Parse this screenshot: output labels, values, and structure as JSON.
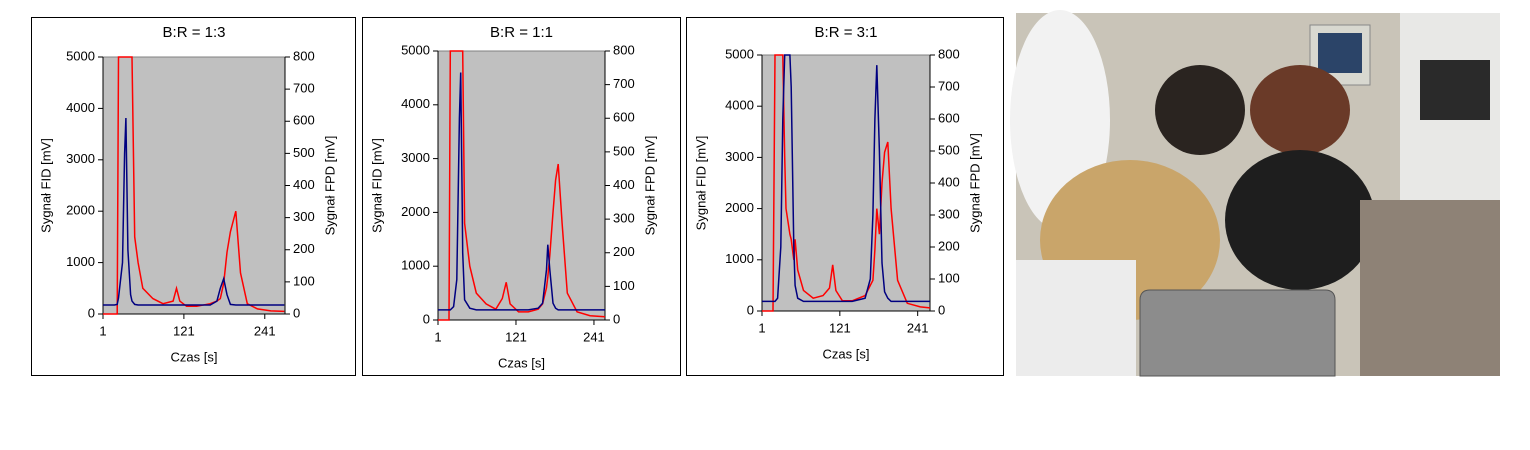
{
  "chart_data": [
    {
      "type": "line",
      "title": "B:R =  1:3",
      "xlabel": "Czas  [s]",
      "ylabel": "Sygnał FID  [mV]",
      "y2label": "Sygnał FPD  [mV]",
      "xlim": [
        1,
        271
      ],
      "xticks": [
        1,
        121,
        241
      ],
      "ylim": [
        0,
        5000
      ],
      "yticks": [
        0,
        1000,
        2000,
        3000,
        4000,
        5000
      ],
      "y2lim": [
        0,
        800
      ],
      "y2ticks": [
        0,
        100,
        200,
        300,
        400,
        500,
        600,
        700,
        800
      ],
      "background": "#c0c0c0",
      "x": [
        1,
        10,
        18,
        22,
        24,
        30,
        33,
        35,
        38,
        42,
        44,
        48,
        53,
        60,
        75,
        90,
        105,
        110,
        115,
        125,
        140,
        160,
        170,
        175,
        180,
        185,
        190,
        198,
        205,
        215,
        230,
        250,
        270
      ],
      "series": [
        {
          "color": "#ff0000",
          "values": [
            0,
            0,
            0,
            0,
            5000,
            5000,
            5000,
            5000,
            5000,
            5000,
            5000,
            1500,
            1000,
            500,
            300,
            200,
            250,
            500,
            250,
            150,
            150,
            200,
            250,
            300,
            600,
            1200,
            1600,
            2000,
            800,
            200,
            100,
            60,
            50
          ]
        },
        {
          "color": "#000080",
          "axis": "y2",
          "values": [
            28,
            28,
            28,
            30,
            50,
            160,
            500,
            610,
            200,
            60,
            40,
            30,
            28,
            28,
            28,
            28,
            28,
            28,
            28,
            28,
            28,
            28,
            40,
            80,
            110,
            60,
            30,
            28,
            28,
            28,
            28,
            28,
            28
          ]
        }
      ]
    },
    {
      "type": "line",
      "title": "B:R = 1:1",
      "xlabel": "Czas  [s]",
      "ylabel": "Sygnał FID  [mV]",
      "y2label": "Sygnał FPD  [mV]",
      "xlim": [
        1,
        258
      ],
      "xticks": [
        1,
        121,
        241
      ],
      "ylim": [
        0,
        5000
      ],
      "yticks": [
        0,
        1000,
        2000,
        3000,
        4000,
        5000
      ],
      "y2lim": [
        0,
        800
      ],
      "y2ticks": [
        0,
        100,
        200,
        300,
        400,
        500,
        600,
        700,
        800
      ],
      "background": "#c0c0c0",
      "x": [
        1,
        10,
        18,
        20,
        25,
        30,
        34,
        36,
        38,
        39,
        42,
        50,
        60,
        75,
        90,
        100,
        106,
        112,
        125,
        140,
        155,
        162,
        168,
        170,
        173,
        178,
        182,
        186,
        192,
        200,
        215,
        235,
        258
      ],
      "series": [
        {
          "color": "#ff0000",
          "values": [
            0,
            0,
            0,
            5000,
            5000,
            5000,
            5000,
            5000,
            5000,
            5000,
            1800,
            1000,
            500,
            300,
            200,
            400,
            700,
            300,
            150,
            150,
            200,
            300,
            600,
            800,
            1200,
            2000,
            2600,
            2900,
            1800,
            500,
            150,
            80,
            60
          ]
        },
        {
          "color": "#000080",
          "axis": "y2",
          "values": [
            30,
            30,
            30,
            30,
            40,
            120,
            600,
            736,
            400,
            200,
            60,
            35,
            30,
            30,
            30,
            30,
            30,
            30,
            30,
            30,
            35,
            50,
            150,
            224,
            150,
            50,
            35,
            30,
            30,
            30,
            30,
            30,
            30
          ]
        }
      ]
    },
    {
      "type": "line",
      "title": "B:R = 3:1",
      "xlabel": "Czas  [s]",
      "ylabel": "Sygnał FID  [mV]",
      "y2label": "Sygnał FPD  [mV]",
      "xlim": [
        1,
        260
      ],
      "xticks": [
        1,
        121,
        241
      ],
      "ylim": [
        0,
        5000
      ],
      "yticks": [
        0,
        1000,
        2000,
        3000,
        4000,
        5000
      ],
      "y2lim": [
        0,
        800
      ],
      "y2ticks": [
        0,
        100,
        200,
        300,
        400,
        500,
        600,
        700,
        800
      ],
      "background": "#c0c0c0",
      "x": [
        1,
        10,
        18,
        21,
        25,
        30,
        33,
        36,
        38,
        44,
        46,
        50,
        52,
        56,
        65,
        80,
        95,
        105,
        110,
        115,
        125,
        140,
        160,
        168,
        172,
        175,
        178,
        182,
        186,
        190,
        195,
        200,
        210,
        225,
        245,
        260
      ],
      "series": [
        {
          "color": "#ff0000",
          "values": [
            0,
            0,
            0,
            5000,
            5000,
            5000,
            5000,
            3000,
            2000,
            1500,
            1400,
            1000,
            1400,
            800,
            400,
            250,
            300,
            450,
            900,
            400,
            200,
            200,
            300,
            500,
            600,
            1200,
            2000,
            1500,
            2500,
            3100,
            3300,
            2000,
            600,
            150,
            80,
            60
          ]
        },
        {
          "color": "#000080",
          "axis": "y2",
          "values": [
            30,
            30,
            30,
            30,
            40,
            200,
            600,
            800,
            800,
            800,
            700,
            200,
            80,
            40,
            30,
            30,
            30,
            30,
            30,
            30,
            30,
            30,
            40,
            100,
            300,
            600,
            768,
            500,
            150,
            60,
            40,
            30,
            30,
            30,
            30,
            30
          ]
        }
      ]
    }
  ]
}
